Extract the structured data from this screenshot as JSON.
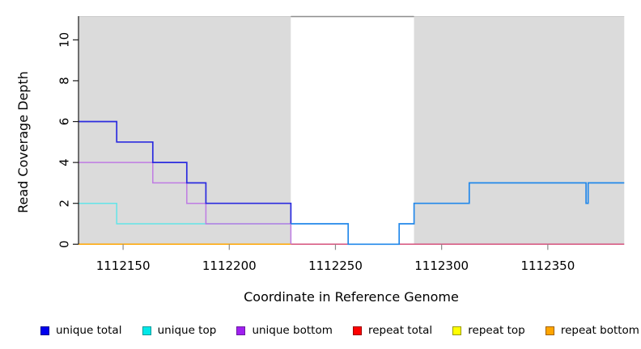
{
  "chart_data": {
    "type": "line",
    "step_style": true,
    "title": "",
    "xlabel": "Coordinate in Reference Genome",
    "ylabel": "Read Coverage Depth",
    "xlim": [
      1112129,
      1112386
    ],
    "ylim": [
      0,
      11.14
    ],
    "x_ticks": [
      1112150,
      1112200,
      1112250,
      1112300,
      1112350
    ],
    "y_ticks": [
      0,
      2,
      4,
      6,
      8,
      10
    ],
    "grid": false,
    "legend_position": "bottom",
    "background_regions": [
      {
        "name": "covered-left",
        "x0": 1112129,
        "x1": 1112229,
        "color": "#DBDBDB"
      },
      {
        "name": "coverage-gap",
        "x0": 1112229,
        "x1": 1112287,
        "color": "#FFFFFF",
        "top_border": "#8E8E8E"
      },
      {
        "name": "covered-right",
        "x0": 1112287,
        "x1": 1112386,
        "color": "#DBDBDB"
      }
    ],
    "series": [
      {
        "name": "unique total",
        "color": "#0000EE",
        "runs": [
          [
            1112129,
            1112147,
            6
          ],
          [
            1112147,
            1112164,
            5
          ],
          [
            1112164,
            1112180,
            4
          ],
          [
            1112180,
            1112189,
            3
          ],
          [
            1112189,
            1112229,
            2
          ],
          [
            1112229,
            1112256,
            1
          ],
          [
            1112256,
            1112280,
            0
          ],
          [
            1112280,
            1112287,
            1
          ],
          [
            1112287,
            1112313,
            2
          ],
          [
            1112313,
            1112368,
            3
          ],
          [
            1112368,
            1112369,
            2
          ],
          [
            1112369,
            1112386,
            3
          ]
        ]
      },
      {
        "name": "unique top",
        "color": "#00EEEE",
        "runs": [
          [
            1112129,
            1112147,
            2
          ],
          [
            1112147,
            1112256,
            1
          ],
          [
            1112256,
            1112280,
            0
          ],
          [
            1112280,
            1112287,
            1
          ],
          [
            1112287,
            1112313,
            2
          ],
          [
            1112313,
            1112368,
            3
          ],
          [
            1112368,
            1112369,
            2
          ],
          [
            1112369,
            1112386,
            3
          ]
        ]
      },
      {
        "name": "unique bottom",
        "color": "#A020F0",
        "runs": [
          [
            1112129,
            1112164,
            4
          ],
          [
            1112164,
            1112180,
            3
          ],
          [
            1112180,
            1112189,
            2
          ],
          [
            1112189,
            1112229,
            1
          ],
          [
            1112229,
            1112386,
            0
          ]
        ]
      },
      {
        "name": "repeat total",
        "color": "#FF0000",
        "runs": [
          [
            1112129,
            1112386,
            0
          ]
        ]
      },
      {
        "name": "repeat top",
        "color": "#FFFF00",
        "runs": [
          [
            1112129,
            1112229,
            0
          ]
        ]
      },
      {
        "name": "repeat bottom",
        "color": "#FFA500",
        "runs": [
          [
            1112129,
            1112229,
            0
          ]
        ]
      }
    ],
    "rendered_lines": [
      {
        "depicts": "repeat-total-top-bottom-at-zero-left",
        "color": "#FFA500",
        "width": 1.5,
        "points": [
          [
            1112129,
            0
          ],
          [
            1112229,
            0
          ]
        ]
      },
      {
        "depicts": "repeat-total-over-unique-bottom-at-zero-right",
        "color": "#D6527C",
        "width": 1.5,
        "points": [
          [
            1112229,
            0
          ],
          [
            1112386,
            0
          ]
        ]
      },
      {
        "depicts": "unique-top",
        "color": "#63E4E8",
        "width": 1.5,
        "points": [
          [
            1112129,
            2
          ],
          [
            1112147,
            2
          ],
          [
            1112147,
            1
          ],
          [
            1112229,
            1
          ]
        ]
      },
      {
        "depicts": "unique-bottom",
        "color": "#BE7BE3",
        "width": 1.5,
        "points": [
          [
            1112129,
            4
          ],
          [
            1112164,
            4
          ],
          [
            1112164,
            3
          ],
          [
            1112180,
            3
          ],
          [
            1112180,
            2
          ],
          [
            1112189,
            2
          ],
          [
            1112189,
            1
          ],
          [
            1112229,
            1
          ],
          [
            1112229,
            0
          ]
        ]
      },
      {
        "depicts": "unique-total",
        "color": "#2B2BDF",
        "width": 1.7,
        "points": [
          [
            1112129,
            6
          ],
          [
            1112147,
            6
          ],
          [
            1112147,
            5
          ],
          [
            1112164,
            5
          ],
          [
            1112164,
            4
          ],
          [
            1112180,
            4
          ],
          [
            1112180,
            3
          ],
          [
            1112189,
            3
          ],
          [
            1112189,
            2
          ],
          [
            1112229,
            2
          ],
          [
            1112229,
            1
          ]
        ]
      },
      {
        "depicts": "unique-total-and-top-overlap",
        "color": "#2288EA",
        "width": 1.7,
        "points": [
          [
            1112229,
            1
          ],
          [
            1112256,
            1
          ],
          [
            1112256,
            0
          ],
          [
            1112280,
            0
          ],
          [
            1112280,
            1
          ],
          [
            1112287,
            1
          ],
          [
            1112287,
            2
          ],
          [
            1112313,
            2
          ],
          [
            1112313,
            3
          ],
          [
            1112368,
            3
          ],
          [
            1112368,
            2
          ],
          [
            1112369,
            2
          ],
          [
            1112369,
            3
          ],
          [
            1112386,
            3
          ]
        ]
      }
    ],
    "legend": [
      {
        "label": "unique total",
        "fill": "#0000EE",
        "border": "#000090"
      },
      {
        "label": "unique top",
        "fill": "#00E8E8",
        "border": "#009999"
      },
      {
        "label": "unique bottom",
        "fill": "#A020F0",
        "border": "#6A1BA0"
      },
      {
        "label": "repeat total",
        "fill": "#FF0000",
        "border": "#990000"
      },
      {
        "label": "repeat top",
        "fill": "#FFFF00",
        "border": "#999900"
      },
      {
        "label": "repeat bottom",
        "fill": "#FFA500",
        "border": "#A06000"
      }
    ],
    "axis_colors": {
      "axis_line": "#1A1A1A",
      "x_tick": "#8A8A8A",
      "tick_label": "#000000"
    }
  }
}
